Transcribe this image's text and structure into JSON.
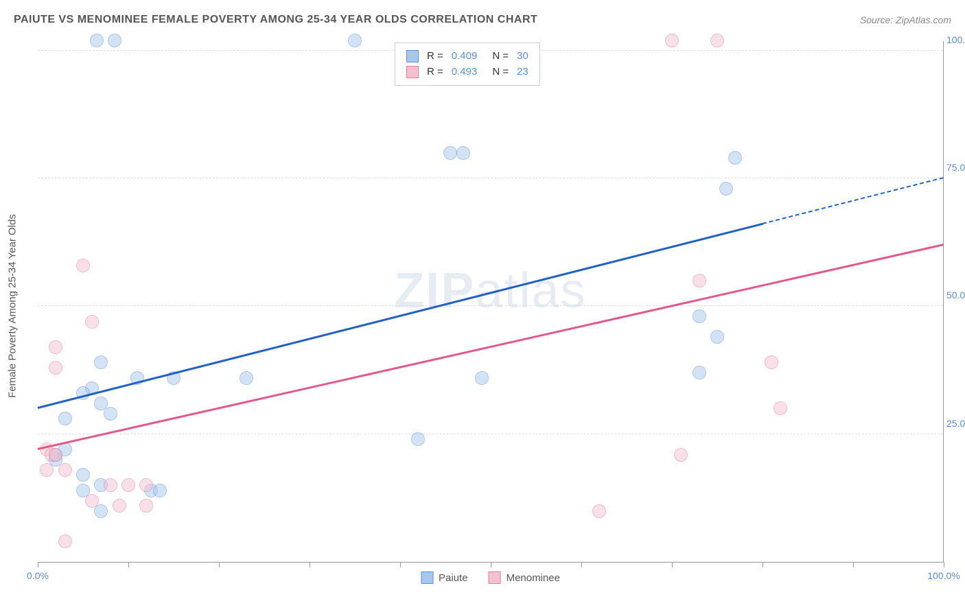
{
  "header": {
    "title": "PAIUTE VS MENOMINEE FEMALE POVERTY AMONG 25-34 YEAR OLDS CORRELATION CHART",
    "source": "Source: ZipAtlas.com"
  },
  "chart": {
    "type": "scatter",
    "ylabel": "Female Poverty Among 25-34 Year Olds",
    "watermark": "ZIPatlas",
    "background_color": "#ffffff",
    "grid_color": "#dddddd",
    "axis_color": "#999999",
    "tick_label_color": "#5b8fd6",
    "xlim": [
      0,
      100
    ],
    "ylim": [
      0,
      102
    ],
    "xtick_positions": [
      0,
      10,
      20,
      30,
      40,
      50,
      60,
      70,
      80,
      90,
      100
    ],
    "xtick_labels": {
      "0": "0.0%",
      "100": "100.0%"
    },
    "ytick_positions": [
      25,
      50,
      75,
      100
    ],
    "ytick_labels": {
      "25": "25.0%",
      "50": "50.0%",
      "75": "75.0%",
      "100": "100.0%"
    },
    "marker_radius": 10,
    "marker_opacity": 0.5,
    "series": [
      {
        "name": "Paiute",
        "fill": "#a6c8ec",
        "stroke": "#5b8fd6",
        "trend_color": "#2161c4",
        "R": "0.409",
        "N": "30",
        "trend": {
          "x1": 0,
          "y1": 30,
          "x2_solid": 80,
          "y2_solid": 66,
          "x2": 100,
          "y2": 75
        },
        "points": [
          [
            6.5,
            102
          ],
          [
            8.5,
            102
          ],
          [
            35,
            102
          ],
          [
            45.5,
            80
          ],
          [
            47,
            80
          ],
          [
            77,
            79
          ],
          [
            76,
            73
          ],
          [
            73,
            48
          ],
          [
            75,
            44
          ],
          [
            49,
            36
          ],
          [
            73,
            37
          ],
          [
            23,
            36
          ],
          [
            15,
            36
          ],
          [
            7,
            39
          ],
          [
            11,
            36
          ],
          [
            6,
            34
          ],
          [
            5,
            33
          ],
          [
            7,
            31
          ],
          [
            8,
            29
          ],
          [
            3,
            28
          ],
          [
            2,
            21
          ],
          [
            2,
            20
          ],
          [
            5,
            17
          ],
          [
            7,
            15
          ],
          [
            5,
            14
          ],
          [
            12.5,
            14
          ],
          [
            13.5,
            14
          ],
          [
            7,
            10
          ],
          [
            3,
            22
          ],
          [
            42,
            24
          ]
        ]
      },
      {
        "name": "Menominee",
        "fill": "#f4c1d0",
        "stroke": "#e47a9a",
        "trend_color": "#e05a85",
        "R": "0.493",
        "N": "23",
        "trend": {
          "x1": 0,
          "y1": 22,
          "x2_solid": 100,
          "y2_solid": 62,
          "x2": 100,
          "y2": 62
        },
        "points": [
          [
            70,
            102
          ],
          [
            75,
            102
          ],
          [
            73,
            55
          ],
          [
            81,
            39
          ],
          [
            82,
            30
          ],
          [
            71,
            21
          ],
          [
            62,
            10
          ],
          [
            5,
            58
          ],
          [
            6,
            47
          ],
          [
            2,
            42
          ],
          [
            2,
            38
          ],
          [
            1,
            22
          ],
          [
            1.5,
            21
          ],
          [
            2,
            21
          ],
          [
            1,
            18
          ],
          [
            3,
            18
          ],
          [
            8,
            15
          ],
          [
            10,
            15
          ],
          [
            12,
            15
          ],
          [
            6,
            12
          ],
          [
            9,
            11
          ],
          [
            12,
            11
          ],
          [
            3,
            4
          ]
        ]
      }
    ],
    "legend": [
      {
        "swatch_fill": "#a6c8ec",
        "swatch_stroke": "#5b8fd6",
        "label": "Paiute"
      },
      {
        "swatch_fill": "#f4c1d0",
        "swatch_stroke": "#e47a9a",
        "label": "Menominee"
      }
    ]
  }
}
